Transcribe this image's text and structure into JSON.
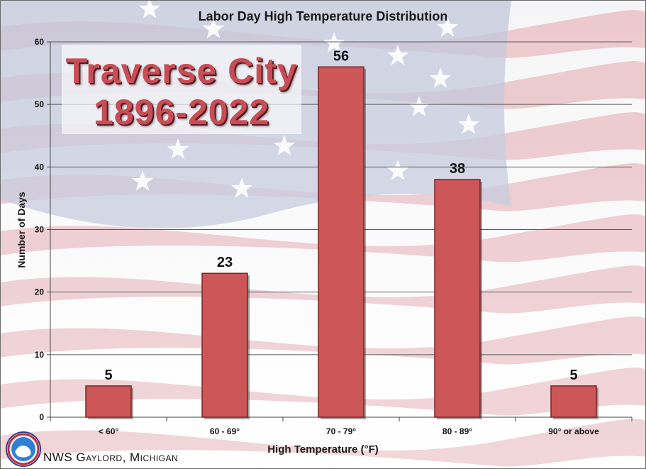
{
  "colors": {
    "bar_fill": "#cd5657",
    "bar_stroke": "#7a2424",
    "overlay_text": "#c84d56",
    "flag_stripe": "#e6b6bc",
    "flag_canton": "#b4bcd3"
  },
  "overlay": {
    "line1": "Traverse City",
    "line2": "1896-2022"
  },
  "footer": {
    "text": "NWS Gaylord, Michigan",
    "logo_icon": "nws-logo-icon"
  },
  "chart_data": {
    "type": "bar",
    "title": "Labor Day High Temperature Distribution",
    "xlabel": "High Temperature (°F)",
    "ylabel": "Number of Days",
    "categories": [
      "< 60°",
      "60 - 69°",
      "70 - 79°",
      "80 - 89°",
      "90° or above"
    ],
    "values": [
      5,
      23,
      56,
      38,
      5
    ],
    "ylim": [
      0,
      60
    ],
    "yticks": [
      0,
      10,
      20,
      30,
      40,
      50,
      60
    ],
    "grid": true,
    "legend": "none"
  }
}
